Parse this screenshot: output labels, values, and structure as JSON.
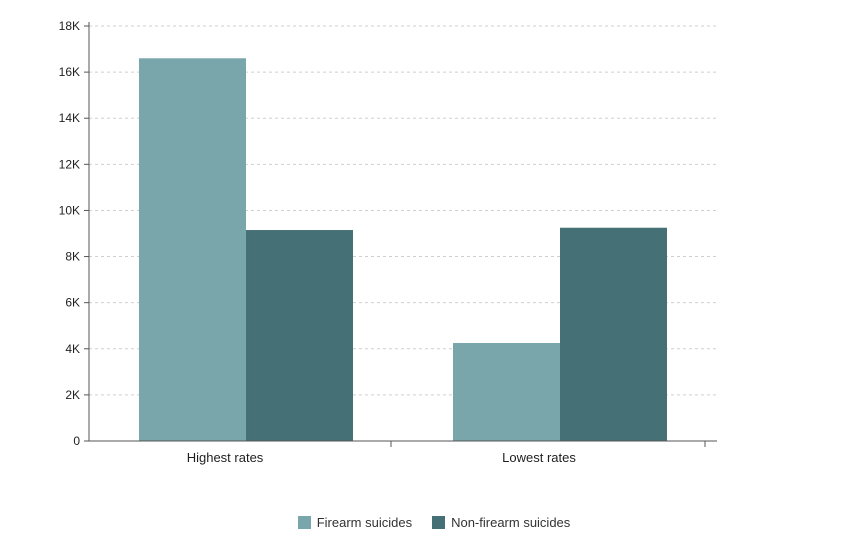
{
  "chart_data": {
    "type": "bar",
    "categories": [
      "Highest rates",
      "Lowest rates"
    ],
    "series": [
      {
        "name": "Firearm suicides",
        "values": [
          16600,
          4250
        ],
        "color": "#78a6ab"
      },
      {
        "name": "Non-firearm suicides",
        "values": [
          9150,
          9250
        ],
        "color": "#457176"
      }
    ],
    "ylim": [
      0,
      18000
    ],
    "yticks": [
      {
        "value": 0,
        "label": "0"
      },
      {
        "value": 2000,
        "label": "2K"
      },
      {
        "value": 4000,
        "label": "4K"
      },
      {
        "value": 6000,
        "label": "6K"
      },
      {
        "value": 8000,
        "label": "8K"
      },
      {
        "value": 10000,
        "label": "10K"
      },
      {
        "value": 12000,
        "label": "12K"
      },
      {
        "value": 14000,
        "label": "14K"
      },
      {
        "value": 16000,
        "label": "16K"
      },
      {
        "value": 18000,
        "label": "18K"
      }
    ],
    "grid": true,
    "legend_position": "bottom-center"
  }
}
